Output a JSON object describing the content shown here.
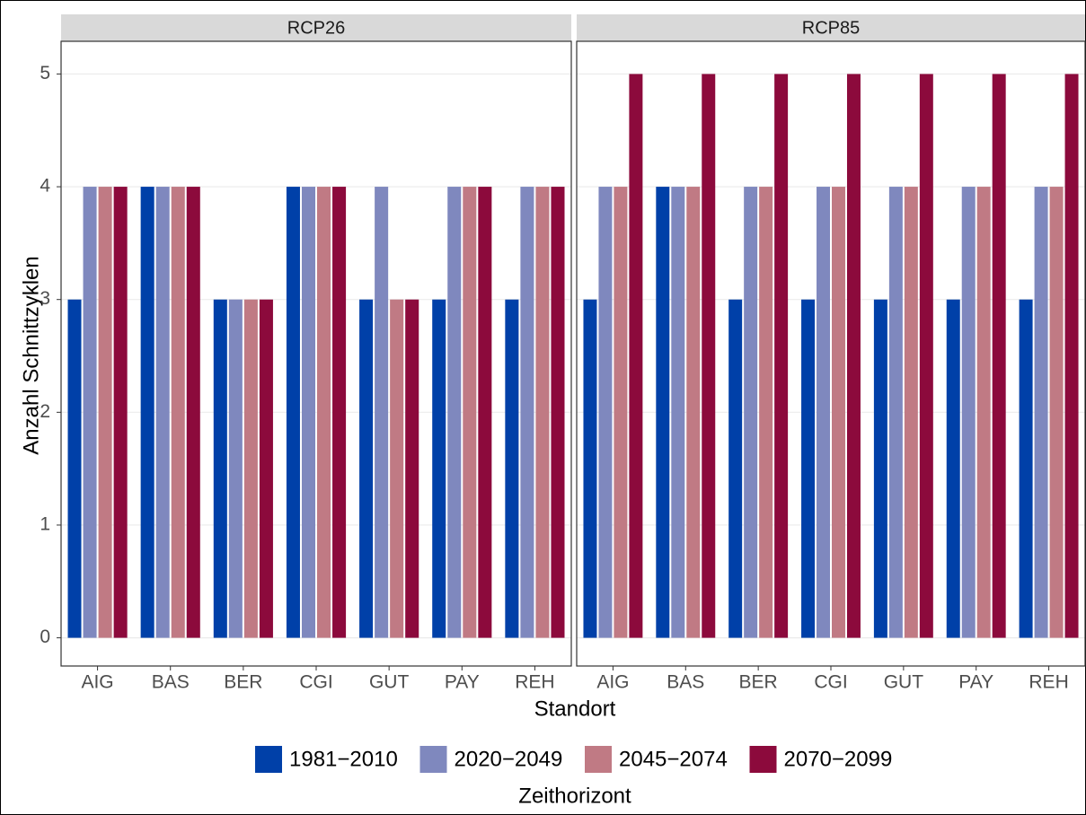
{
  "chart_data": {
    "type": "bar",
    "facets": [
      "RCP26",
      "RCP85"
    ],
    "categories": [
      "AIG",
      "BAS",
      "BER",
      "CGI",
      "GUT",
      "PAY",
      "REH"
    ],
    "series": [
      {
        "name": "1981−2010",
        "color": "#0040a8",
        "values": [
          [
            3,
            4,
            3,
            4,
            3,
            3,
            3
          ],
          [
            3,
            4,
            3,
            3,
            3,
            3,
            3
          ]
        ]
      },
      {
        "name": "2020−2049",
        "color": "#7f88be",
        "values": [
          [
            4,
            4,
            3,
            4,
            4,
            4,
            4
          ],
          [
            4,
            4,
            4,
            4,
            4,
            4,
            4
          ]
        ]
      },
      {
        "name": "2045−2074",
        "color": "#c07a84",
        "values": [
          [
            4,
            4,
            3,
            4,
            3,
            4,
            4
          ],
          [
            4,
            4,
            4,
            4,
            4,
            4,
            4
          ]
        ]
      },
      {
        "name": "2070−2099",
        "color": "#8c0a3c",
        "values": [
          [
            4,
            4,
            3,
            4,
            3,
            4,
            4
          ],
          [
            5,
            5,
            5,
            5,
            5,
            5,
            5
          ]
        ]
      }
    ],
    "ylim": [
      -0.25,
      5.29
    ],
    "yticks": [
      0,
      1,
      2,
      3,
      4,
      5
    ],
    "grid": true,
    "ylabel": "Anzahl Schnittzyklen",
    "xlabel": "Standort",
    "legend_title": "Zeithorizont",
    "legend": "bottom"
  }
}
